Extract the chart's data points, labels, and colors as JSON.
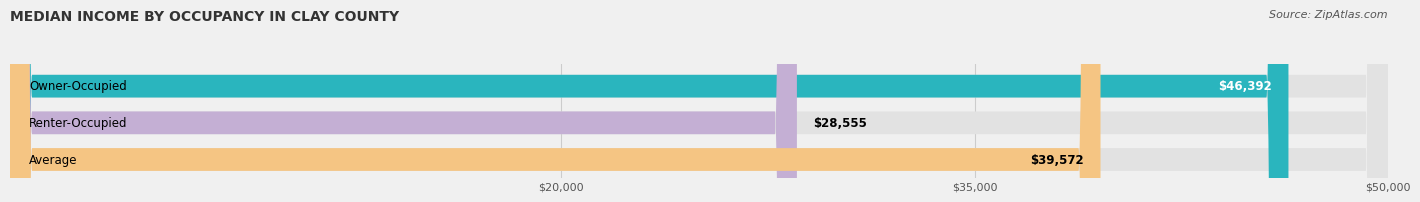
{
  "title": "MEDIAN INCOME BY OCCUPANCY IN CLAY COUNTY",
  "source": "Source: ZipAtlas.com",
  "categories": [
    "Owner-Occupied",
    "Renter-Occupied",
    "Average"
  ],
  "values": [
    46392,
    28555,
    39572
  ],
  "bar_colors": [
    "#2ab5be",
    "#c4afd4",
    "#f5c583"
  ],
  "label_inside": [
    true,
    false,
    true
  ],
  "value_labels": [
    "$46,392",
    "$28,555",
    "$39,572"
  ],
  "value_label_colors": [
    "white",
    "black",
    "black"
  ],
  "xlim": [
    0,
    50000
  ],
  "xticks": [
    20000,
    35000,
    50000
  ],
  "xticklabels": [
    "$20,000",
    "$35,000",
    "$50,000"
  ],
  "background_color": "#f0f0f0",
  "bar_background_color": "#e2e2e2",
  "title_fontsize": 10,
  "source_fontsize": 8,
  "bar_label_fontsize": 8.5,
  "category_label_fontsize": 8.5
}
